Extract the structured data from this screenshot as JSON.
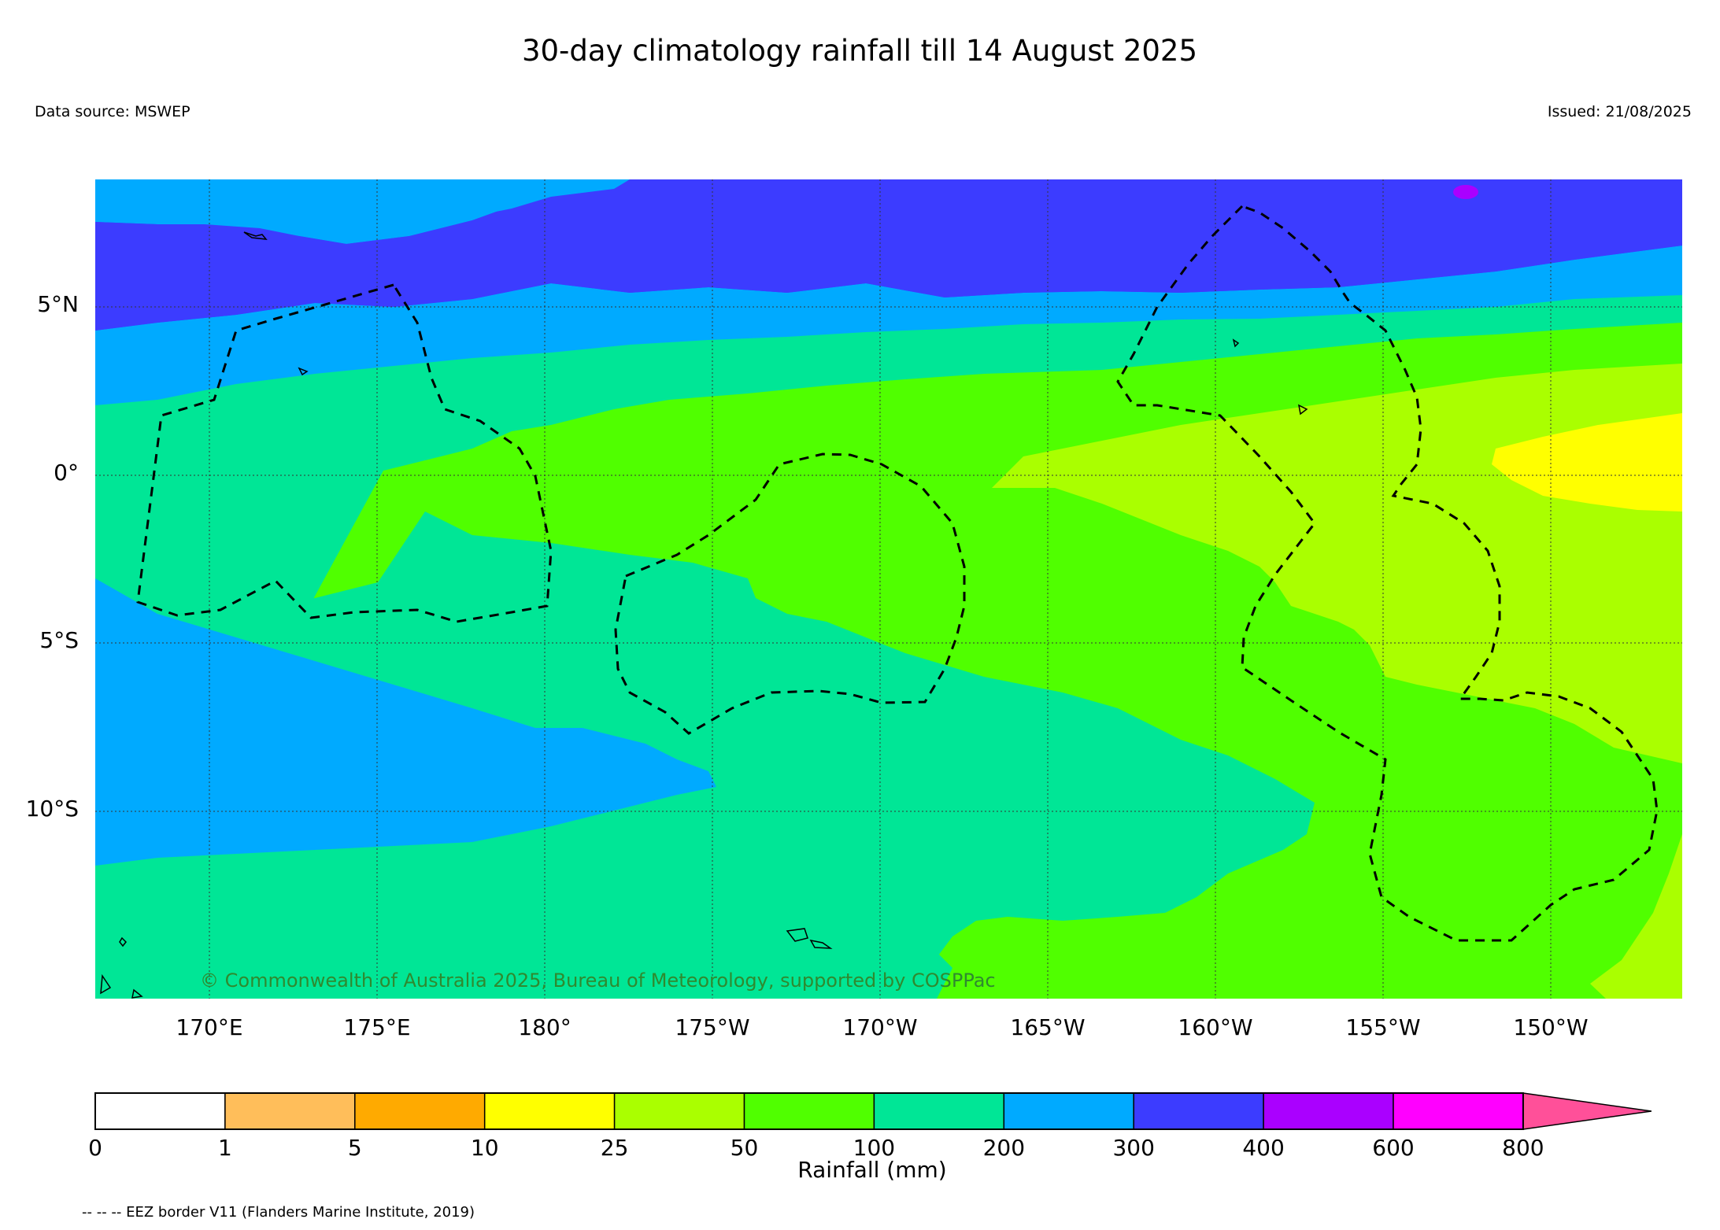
{
  "header": {
    "title": "30-day climatology rainfall till 14 August 2025",
    "source": "Data source: MSWEP",
    "issued": "Issued: 21/08/2025"
  },
  "map": {
    "lat_labels": [
      "5°N",
      "0°",
      "5°S",
      "10°S"
    ],
    "lon_labels": [
      "170°E",
      "175°E",
      "180°",
      "175°W",
      "170°W",
      "165°W",
      "160°W",
      "155°W",
      "150°W"
    ],
    "credit": "© Commonwealth of Australia 2025, Bureau of Meteorology, supported by COSPPac",
    "extent": {
      "lon_min": 166.6,
      "lon_max": 213.9,
      "lat_min": -15.8,
      "lat_max": 8.7
    },
    "grid": true
  },
  "colorbar": {
    "label": "Rainfall (mm)",
    "ticks": [
      "0",
      "1",
      "5",
      "10",
      "25",
      "50",
      "100",
      "200",
      "300",
      "400",
      "600",
      "800"
    ],
    "colors": [
      "#ffffff",
      "#ffbe5a",
      "#ffaa00",
      "#ffff00",
      "#aaff00",
      "#50ff00",
      "#00e696",
      "#00aaff",
      "#3c3cff",
      "#aa00ff",
      "#ff00ff",
      "#ff5099"
    ],
    "extend": "max"
  },
  "footer": {
    "legend_note": "-- -- -- EEZ border V11 (Flanders Marine Institute, 2019)"
  }
}
